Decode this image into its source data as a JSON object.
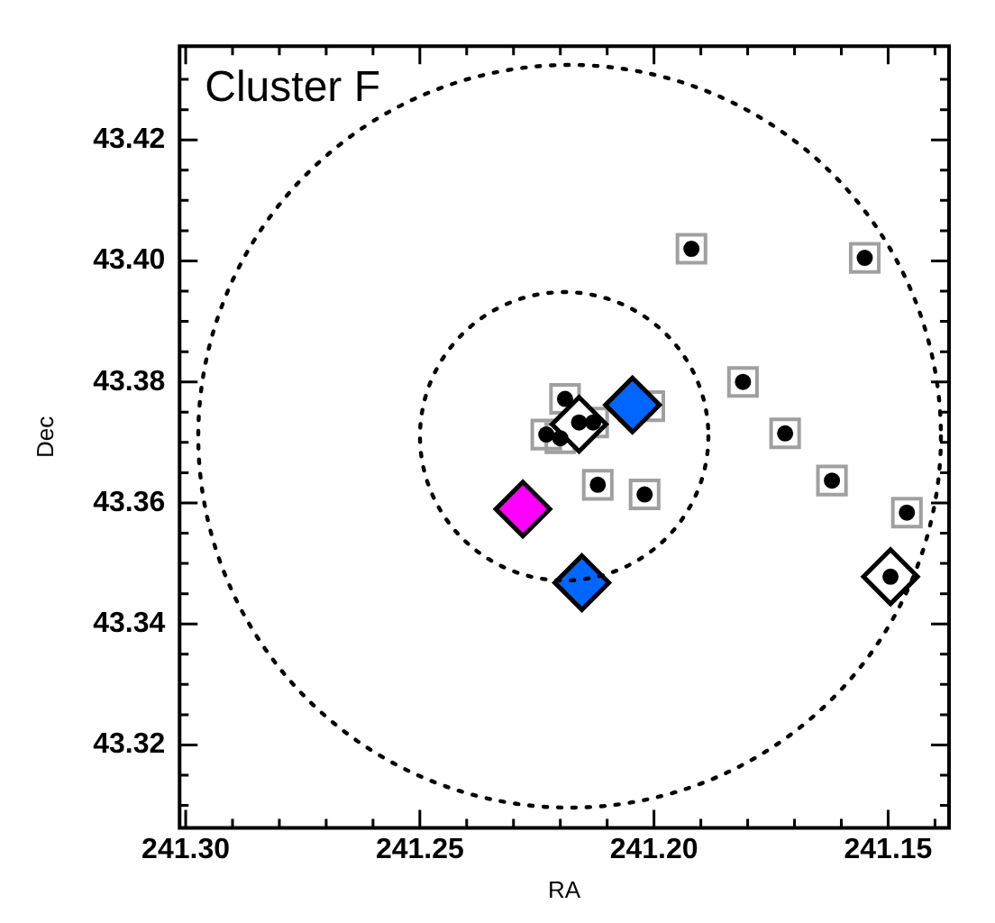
{
  "chart_data": {
    "type": "scatter",
    "xlabel": "RA",
    "ylabel": "Dec",
    "annotations": [
      "Cluster F"
    ],
    "xlim": [
      241.3013,
      241.137
    ],
    "ylim": [
      43.3063,
      43.4355
    ],
    "xticks": [
      {
        "value": 241.3,
        "label": "241.30"
      },
      {
        "value": 241.29,
        "label": null
      },
      {
        "value": 241.28,
        "label": null
      },
      {
        "value": 241.27,
        "label": null
      },
      {
        "value": 241.26,
        "label": null
      },
      241.25,
      {
        "value": 241.24,
        "label": null
      },
      {
        "value": 241.23,
        "label": null
      },
      {
        "value": 241.22,
        "label": null
      },
      {
        "value": 241.21,
        "label": null
      },
      {
        "value": 241.2,
        "label": "241.20"
      },
      {
        "value": 241.19,
        "label": null
      },
      {
        "value": 241.18,
        "label": null
      },
      {
        "value": 241.17,
        "label": null
      },
      {
        "value": 241.16,
        "label": null
      },
      241.15,
      {
        "value": 241.14,
        "label": null
      }
    ],
    "yticks": [
      {
        "value": 43.31,
        "label": null
      },
      {
        "value": 43.315,
        "label": null
      },
      43.32,
      {
        "value": 43.325,
        "label": null
      },
      {
        "value": 43.33,
        "label": null
      },
      {
        "value": 43.335,
        "label": null
      },
      43.34,
      {
        "value": 43.345,
        "label": null
      },
      {
        "value": 43.35,
        "label": null
      },
      {
        "value": 43.355,
        "label": null
      },
      43.36,
      {
        "value": 43.365,
        "label": null
      },
      {
        "value": 43.37,
        "label": null
      },
      {
        "value": 43.375,
        "label": null
      },
      43.38,
      {
        "value": 43.385,
        "label": null
      },
      {
        "value": 43.39,
        "label": null
      },
      {
        "value": 43.395,
        "label": null
      },
      {
        "value": 43.4,
        "label": "43.40"
      },
      {
        "value": 43.405,
        "label": null
      },
      {
        "value": 43.41,
        "label": null
      },
      {
        "value": 43.415,
        "label": null
      },
      43.42,
      {
        "value": 43.425,
        "label": null
      },
      {
        "value": 43.43,
        "label": null
      }
    ],
    "grid": false,
    "legend": false,
    "series": [
      {
        "type": "scatter",
        "marker": "square",
        "color": "#a0a0a0",
        "x": [
          241.192,
          241.155,
          241.181,
          241.172,
          241.212,
          241.202,
          241.162,
          241.146,
          241.219,
          241.223,
          241.22,
          241.213,
          241.201
        ],
        "values": [
          43.402,
          43.4005,
          43.38,
          43.3715,
          43.363,
          43.3614,
          43.3637,
          43.3584,
          43.3772,
          43.3713,
          43.3707,
          43.3733,
          43.376
        ]
      },
      {
        "type": "scatter",
        "marker": "diamond",
        "color": "#ff00ff",
        "x": [
          241.228
        ],
        "values": [
          43.359
        ]
      },
      {
        "type": "scatter",
        "marker": "diamond",
        "color": "#0066ff",
        "x": [
          241.2046,
          241.2154
        ],
        "values": [
          43.3762,
          43.3468
        ]
      },
      {
        "type": "scatter",
        "marker": "diamond",
        "color": "#ffffff",
        "x": [
          241.216,
          241.1495
        ],
        "values": [
          43.373,
          43.3478
        ]
      },
      {
        "type": "scatter",
        "marker": "circle",
        "color": "#000000",
        "x": [
          241.192,
          241.155,
          241.181,
          241.172,
          241.212,
          241.202,
          241.162,
          241.146,
          241.1495,
          241.219,
          241.223,
          241.22,
          241.216,
          241.213
        ],
        "values": [
          43.402,
          43.4005,
          43.38,
          43.3715,
          43.363,
          43.3614,
          43.3637,
          43.3584,
          43.3478,
          43.3772,
          43.3713,
          43.3707,
          43.3733,
          43.3733
        ]
      }
    ]
  }
}
